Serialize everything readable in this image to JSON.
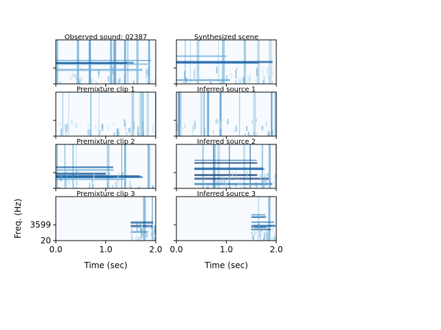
{
  "chart_data": [
    {
      "type": "spectrogram",
      "title": "Observed sound: 02387"
    },
    {
      "type": "spectrogram",
      "title": "Synthesized scene"
    },
    {
      "type": "spectrogram",
      "title": "Premixture clip 1"
    },
    {
      "type": "spectrogram",
      "title": "Inferred source 1"
    },
    {
      "type": "spectrogram",
      "title": "Premixture clip 2"
    },
    {
      "type": "spectrogram",
      "title": "Inferred source 2"
    },
    {
      "type": "spectrogram",
      "title": "Premixture clip 3",
      "xlabel": "Time (sec)",
      "ylabel": "Freq. (Hz)",
      "xlim": [
        0,
        2
      ],
      "xticks": [
        {
          "value": 0,
          "label": "0.0"
        },
        {
          "value": 1,
          "label": "1.0"
        },
        {
          "value": 2,
          "label": "2.0"
        }
      ],
      "ylim": [
        20,
        10000
      ],
      "yticks": [
        20,
        3599
      ]
    },
    {
      "type": "spectrogram",
      "title": "Inferred source 3",
      "xlabel": "Time (sec)",
      "xlim": [
        0,
        2
      ],
      "xticks": [
        {
          "value": 0,
          "label": "0.0"
        },
        {
          "value": 1,
          "label": "1.0"
        },
        {
          "value": 2,
          "label": "2.0"
        }
      ]
    }
  ]
}
